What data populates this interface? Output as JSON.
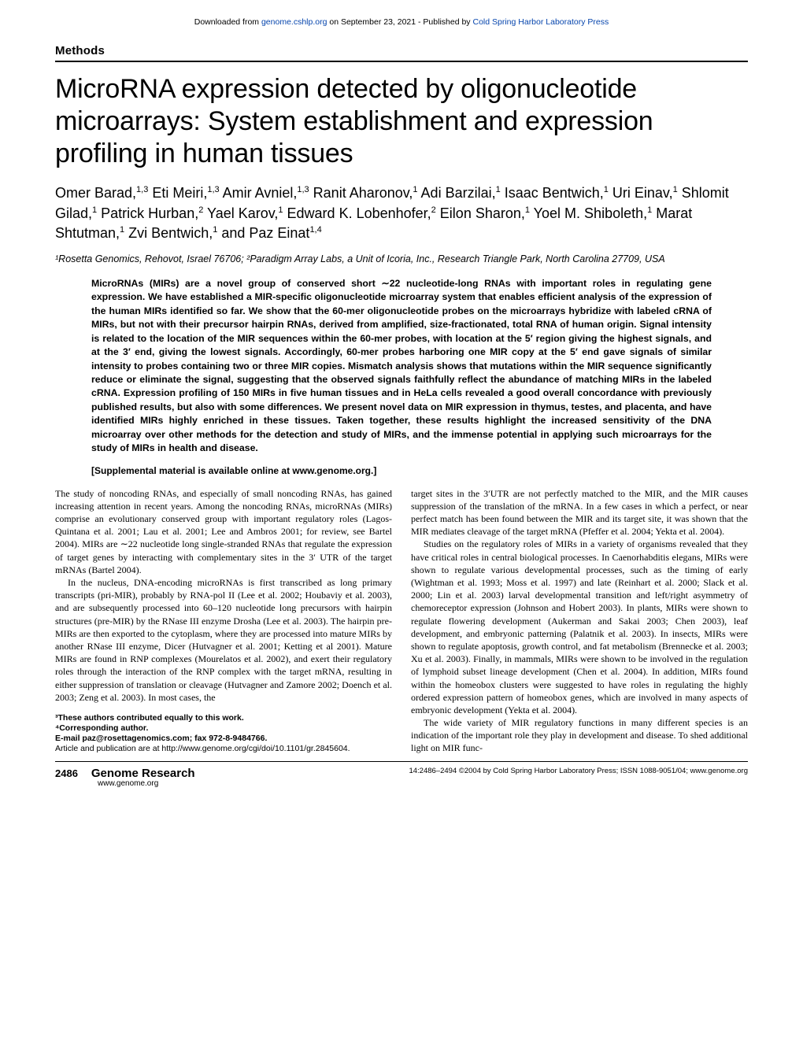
{
  "download_bar": {
    "prefix": "Downloaded from ",
    "link1": "genome.cshlp.org",
    "mid": " on September 23, 2021 - Published by ",
    "link2": "Cold Spring Harbor Laboratory Press"
  },
  "section_label": "Methods",
  "title": "MicroRNA expression detected by oligonucleotide microarrays: System establishment and expression profiling in human tissues",
  "authors_html": "Omer Barad,<sup>1,3</sup> Eti Meiri,<sup>1,3</sup> Amir Avniel,<sup>1,3</sup> Ranit Aharonov,<sup>1</sup> Adi Barzilai,<sup>1</sup> Isaac Bentwich,<sup>1</sup> Uri Einav,<sup>1</sup> Shlomit Gilad,<sup>1</sup> Patrick Hurban,<sup>2</sup> Yael Karov,<sup>1</sup> Edward K. Lobenhofer,<sup>2</sup> Eilon Sharon,<sup>1</sup> Yoel M. Shiboleth,<sup>1</sup> Marat Shtutman,<sup>1</sup> Zvi Bentwich,<sup>1</sup> and Paz Einat<sup>1,4</sup>",
  "affiliations": "¹Rosetta Genomics, Rehovot, Israel 76706; ²Paradigm Array Labs, a Unit of Icoria, Inc., Research Triangle Park, North Carolina 27709, USA",
  "abstract": "MicroRNAs (MIRs) are a novel group of conserved short ∼22 nucleotide-long RNAs with important roles in regulating gene expression. We have established a MIR-specific oligonucleotide microarray system that enables efficient analysis of the expression of the human MIRs identified so far. We show that the 60-mer oligonucleotide probes on the microarrays hybridize with labeled cRNA of MIRs, but not with their precursor hairpin RNAs, derived from amplified, size-fractionated, total RNA of human origin. Signal intensity is related to the location of the MIR sequences within the 60-mer probes, with location at the 5′ region giving the highest signals, and at the 3′ end, giving the lowest signals. Accordingly, 60-mer probes harboring one MIR copy at the 5′ end gave signals of similar intensity to probes containing two or three MIR copies. Mismatch analysis shows that mutations within the MIR sequence significantly reduce or eliminate the signal, suggesting that the observed signals faithfully reflect the abundance of matching MIRs in the labeled cRNA. Expression profiling of 150 MIRs in five human tissues and in HeLa cells revealed a good overall concordance with previously published results, but also with some differences. We present novel data on MIR expression in thymus, testes, and placenta, and have identified MIRs highly enriched in these tissues. Taken together, these results highlight the increased sensitivity of the DNA microarray over other methods for the detection and study of MIRs, and the immense potential in applying such microarrays for the study of MIRs in health and disease.",
  "supplement": "[Supplemental material is available online at www.genome.org.]",
  "body": {
    "left": {
      "p1": "The study of noncoding RNAs, and especially of small noncoding RNAs, has gained increasing attention in recent years. Among the noncoding RNAs, microRNAs (MIRs) comprise an evolutionary conserved group with important regulatory roles (Lagos-Quintana et al. 2001; Lau et al. 2001; Lee and Ambros 2001; for review, see Bartel 2004). MIRs are ∼22 nucleotide long single-stranded RNAs that regulate the expression of target genes by interacting with complementary sites in the 3′ UTR of the target mRNAs (Bartel 2004).",
      "p2": "In the nucleus, DNA-encoding microRNAs is first transcribed as long primary transcripts (pri-MIR), probably by RNA-pol II (Lee et al. 2002; Houbaviy et al. 2003), and are subsequently processed into 60–120 nucleotide long precursors with hairpin structures (pre-MIR) by the RNase III enzyme Drosha (Lee et al. 2003). The hairpin pre-MIRs are then exported to the cytoplasm, where they are processed into mature MIRs by another RNase III enzyme, Dicer (Hutvagner et al. 2001; Ketting et al 2001). Mature MIRs are found in RNP complexes (Mourelatos et al. 2002), and exert their regulatory roles through the interaction of the RNP complex with the target mRNA, resulting in either suppression of translation or cleavage (Hutvagner and Zamore 2002; Doench et al. 2003; Zeng et al. 2003). In most cases, the"
    },
    "right": {
      "p1": "target sites in the 3′UTR are not perfectly matched to the MIR, and the MIR causes suppression of the translation of the mRNA. In a few cases in which a perfect, or near perfect match has been found between the MIR and its target site, it was shown that the MIR mediates cleavage of the target mRNA (Pfeffer et al. 2004; Yekta et al. 2004).",
      "p2": "Studies on the regulatory roles of MIRs in a variety of organisms revealed that they have critical roles in central biological processes. In Caenorhabditis elegans, MIRs were shown to regulate various developmental processes, such as the timing of early (Wightman et al. 1993; Moss et al. 1997) and late (Reinhart et al. 2000; Slack et al. 2000; Lin et al. 2003) larval developmental transition and left/right asymmetry of chemoreceptor expression (Johnson and Hobert 2003). In plants, MIRs were shown to regulate flowering development (Aukerman and Sakai 2003; Chen 2003), leaf development, and embryonic patterning (Palatnik et al. 2003). In insects, MIRs were shown to regulate apoptosis, growth control, and fat metabolism (Brennecke et al. 2003; Xu et al. 2003). Finally, in mammals, MIRs were shown to be involved in the regulation of lymphoid subset lineage development (Chen et al. 2004). In addition, MIRs found within the homeobox clusters were suggested to have roles in regulating the highly ordered expression pattern of homeobox genes, which are involved in many aspects of embryonic development (Yekta et al. 2004).",
      "p3": "The wide variety of MIR regulatory functions in many different species is an indication of the important role they play in development and disease. To shed additional light on MIR func-"
    }
  },
  "footnotes": {
    "l1": "³These authors contributed equally to this work.",
    "l2": "⁴Corresponding author.",
    "l3": "E-mail paz@rosettagenomics.com; fax 972-8-9484766.",
    "l4": "Article and publication are at http://www.genome.org/cgi/doi/10.1101/gr.2845604."
  },
  "footer": {
    "page": "2486",
    "journal": "Genome Research",
    "site": "www.genome.org",
    "right": "14:2486–2494 ©2004 by Cold Spring Harbor Laboratory Press; ISSN 1088-9051/04; www.genome.org"
  },
  "colors": {
    "link": "#0645ad",
    "text": "#000000",
    "bg": "#ffffff"
  },
  "typography": {
    "title_fontsize": 34,
    "authors_fontsize": 18,
    "abstract_fontsize": 12.3,
    "body_fontsize": 12,
    "footnote_fontsize": 10.5
  }
}
